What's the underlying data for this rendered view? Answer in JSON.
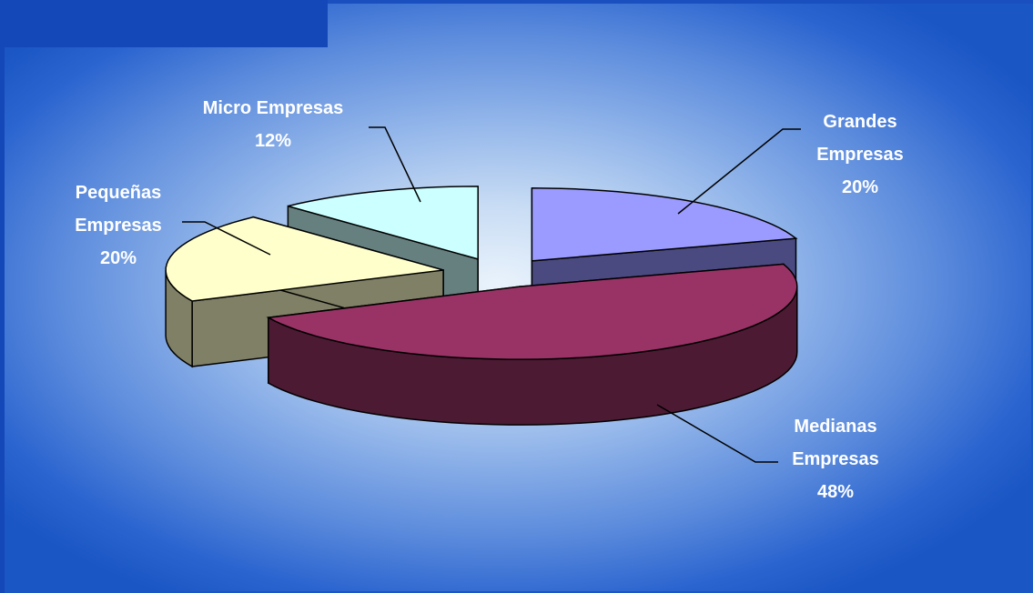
{
  "chart_data": {
    "type": "pie",
    "style": "3d-exploded",
    "slices": [
      {
        "label_lines": [
          "Grandes",
          "Empresas"
        ],
        "percent_label": "20%",
        "value": 20,
        "top_color": "#9b9bff",
        "side_color": "#4a4a80"
      },
      {
        "label_lines": [
          "Medianas",
          "Empresas"
        ],
        "percent_label": "48%",
        "value": 48,
        "top_color": "#993366",
        "side_color": "#4d1a33"
      },
      {
        "label_lines": [
          "Pequeñas",
          "Empresas"
        ],
        "percent_label": "20%",
        "value": 20,
        "top_color": "#ffffcc",
        "side_color": "#808066"
      },
      {
        "label_lines": [
          "Micro Empresas"
        ],
        "percent_label": "12%",
        "value": 12,
        "top_color": "#ccffff",
        "side_color": "#668080"
      }
    ],
    "background": {
      "center_color": "#eaf3fc",
      "edge_color": "#1a56c4"
    }
  }
}
